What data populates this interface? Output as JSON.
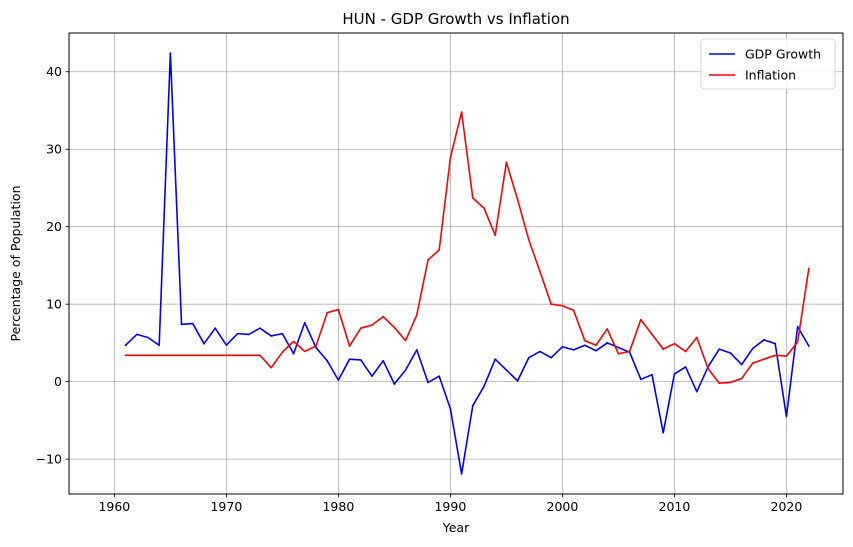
{
  "chart_data": {
    "type": "line",
    "title": "HUN - GDP Growth vs Inflation",
    "xlabel": "Year",
    "ylabel": "Percentage of Population",
    "xlim": [
      1955.95,
      2025.05
    ],
    "ylim": [
      -14.5,
      45.0
    ],
    "xticks": [
      1960,
      1970,
      1980,
      1990,
      2000,
      2010,
      2020
    ],
    "yticks": [
      -10,
      0,
      10,
      20,
      30,
      40
    ],
    "grid": true,
    "legend_position": "top-right",
    "x": [
      1961,
      1962,
      1963,
      1964,
      1965,
      1966,
      1967,
      1968,
      1969,
      1970,
      1971,
      1972,
      1973,
      1974,
      1975,
      1976,
      1977,
      1978,
      1979,
      1980,
      1981,
      1982,
      1983,
      1984,
      1985,
      1986,
      1987,
      1988,
      1989,
      1990,
      1991,
      1992,
      1993,
      1994,
      1995,
      1996,
      1997,
      1998,
      1999,
      2000,
      2001,
      2002,
      2003,
      2004,
      2005,
      2006,
      2007,
      2008,
      2009,
      2010,
      2011,
      2012,
      2013,
      2014,
      2015,
      2016,
      2017,
      2018,
      2019,
      2020,
      2021,
      2022
    ],
    "series": [
      {
        "name": "GDP Growth",
        "color": "#0000ff",
        "values": [
          4.7,
          6.1,
          5.7,
          4.7,
          42.4,
          7.4,
          7.5,
          4.9,
          6.9,
          4.7,
          6.2,
          6.1,
          6.9,
          5.9,
          6.2,
          3.6,
          7.6,
          4.4,
          2.7,
          0.2,
          2.9,
          2.8,
          0.7,
          2.7,
          -0.3,
          1.5,
          4.1,
          -0.1,
          0.7,
          -3.5,
          -11.9,
          -3.1,
          -0.6,
          2.9,
          1.5,
          0.1,
          3.1,
          3.9,
          3.1,
          4.5,
          4.1,
          4.7,
          4.0,
          5.0,
          4.4,
          3.8,
          0.3,
          0.9,
          -6.6,
          1.0,
          1.9,
          -1.3,
          1.9,
          4.2,
          3.7,
          2.2,
          4.3,
          5.4,
          4.9,
          -4.5,
          7.1,
          4.6
        ]
      },
      {
        "name": "Inflation",
        "color": "#ff0000",
        "values": [
          3.4,
          3.4,
          3.4,
          3.4,
          3.4,
          3.4,
          3.4,
          3.4,
          3.4,
          3.4,
          3.4,
          3.4,
          3.4,
          1.8,
          3.8,
          5.2,
          3.9,
          4.6,
          8.9,
          9.3,
          4.6,
          6.9,
          7.3,
          8.4,
          7.0,
          5.3,
          8.6,
          15.7,
          17.0,
          28.9,
          34.8,
          23.7,
          22.4,
          18.9,
          28.3,
          23.5,
          18.3,
          14.2,
          10.0,
          9.8,
          9.2,
          5.3,
          4.7,
          6.8,
          3.6,
          3.9,
          8.0,
          6.1,
          4.2,
          4.9,
          3.9,
          5.7,
          1.7,
          -0.2,
          -0.1,
          0.4,
          2.4,
          2.9,
          3.4,
          3.3,
          5.1,
          14.6
        ]
      }
    ]
  }
}
